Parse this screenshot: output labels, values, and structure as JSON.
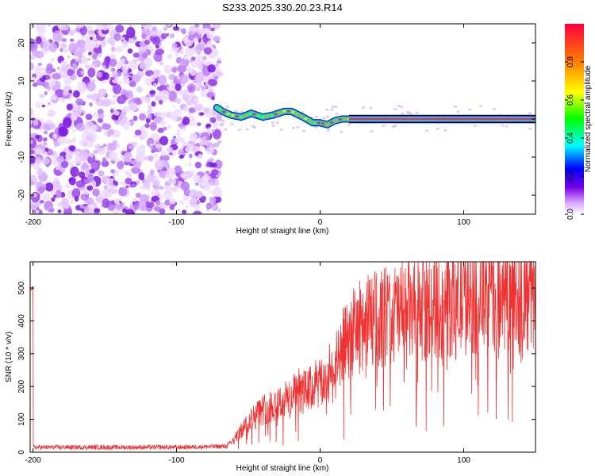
{
  "chart_data": [
    {
      "type": "heatmap",
      "title": "S233.2025.330.20.23.R14",
      "xlabel": "Height of straight line (km)",
      "ylabel": "Frequency (Hz)",
      "xlim": [
        -202,
        150
      ],
      "ylim": [
        -25,
        25
      ],
      "x_ticks": [
        -200,
        -100,
        0,
        100
      ],
      "x_tick_labels": [
        "-200",
        "-100",
        "0",
        "100"
      ],
      "y_ticks": [
        -20,
        -10,
        0,
        10,
        20
      ],
      "y_tick_labels": [
        "-20",
        "-10",
        "0",
        "10",
        "20"
      ],
      "noise_region_x": [
        -202,
        -70
      ],
      "signal_track": {
        "x": [
          -72,
          -68,
          -62,
          -55,
          -48,
          -40,
          -33,
          -25,
          -20,
          -12,
          -5,
          0,
          5,
          10,
          15,
          20,
          40,
          60,
          80,
          100,
          120,
          150
        ],
        "y": [
          3,
          2,
          1,
          0.5,
          1.5,
          0.5,
          1,
          2,
          2,
          0.5,
          -1,
          -1,
          -1.5,
          -0.5,
          0,
          0,
          0,
          0,
          0,
          0,
          0,
          0
        ]
      },
      "colorbar": {
        "label": "Normalized spectral amplitude",
        "range": [
          0,
          1
        ],
        "ticks": [
          0.0,
          0.2,
          0.4,
          0.6,
          0.8
        ],
        "tick_labels": [
          "0.0",
          "0.2",
          "0.4",
          "0.6",
          "0.8"
        ]
      }
    },
    {
      "type": "line",
      "xlabel": "Height of straight line (km)",
      "ylabel": "SNR (10 * v/v)",
      "xlim": [
        -202,
        150
      ],
      "ylim": [
        0,
        580
      ],
      "x_ticks": [
        -200,
        -100,
        0,
        100
      ],
      "x_tick_labels": [
        "-200",
        "-100",
        "0",
        "100"
      ],
      "y_ticks": [
        0,
        100,
        200,
        300,
        400,
        500
      ],
      "y_tick_labels": [
        "0",
        "100",
        "200",
        "300",
        "400",
        "500"
      ],
      "series": [
        {
          "name": "SNR",
          "color": "#f03232",
          "x": [
            -200,
            -150,
            -100,
            -65,
            -60,
            -50,
            -40,
            -30,
            -20,
            -10,
            0,
            10,
            20,
            30,
            40,
            50,
            60,
            70,
            80,
            90,
            100,
            110,
            120,
            130,
            140,
            150
          ],
          "values": [
            15,
            15,
            15,
            18,
            40,
            100,
            140,
            160,
            180,
            200,
            220,
            260,
            380,
            420,
            440,
            450,
            460,
            470,
            480,
            490,
            500,
            510,
            520,
            520,
            510,
            500
          ]
        }
      ]
    }
  ]
}
